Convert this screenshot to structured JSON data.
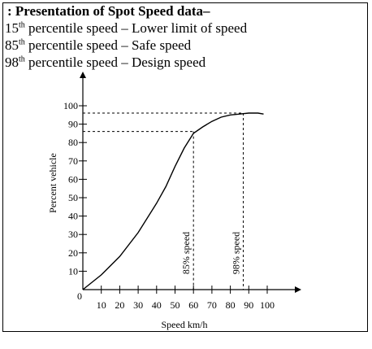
{
  "header": {
    "title": ": Presentation of Spot Speed data–",
    "lines": [
      {
        "num": "15",
        "sup": "th",
        "text": " percentile speed – Lower limit of speed"
      },
      {
        "num": "85",
        "sup": "th",
        "text": " percentile speed – Safe speed"
      },
      {
        "num": "98",
        "sup": "th",
        "text": " percentile speed – Design speed"
      }
    ]
  },
  "chart_data": {
    "type": "line",
    "xlabel": "Speed km/h",
    "ylabel": "Percent vehicle",
    "xlim": [
      0,
      100
    ],
    "ylim": [
      0,
      100
    ],
    "x_ticks": [
      10,
      20,
      30,
      40,
      50,
      60,
      70,
      80,
      90,
      100
    ],
    "y_ticks": [
      10,
      20,
      30,
      40,
      50,
      60,
      70,
      80,
      90,
      100
    ],
    "origin_label": "0",
    "series": [
      {
        "x": [
          0,
          10,
          20,
          30,
          40,
          45,
          50,
          55,
          60,
          65,
          70,
          75,
          80,
          85,
          90,
          95,
          98
        ],
        "y": [
          0,
          8,
          18,
          31,
          47,
          56,
          67,
          77,
          85,
          88.5,
          91.5,
          93.8,
          95,
          95.5,
          96,
          96,
          95.5
        ]
      }
    ],
    "annotations": [
      {
        "label": "85% speed",
        "x": 60,
        "y": 86
      },
      {
        "label": "98% speed",
        "x": 87,
        "y": 96
      }
    ]
  }
}
